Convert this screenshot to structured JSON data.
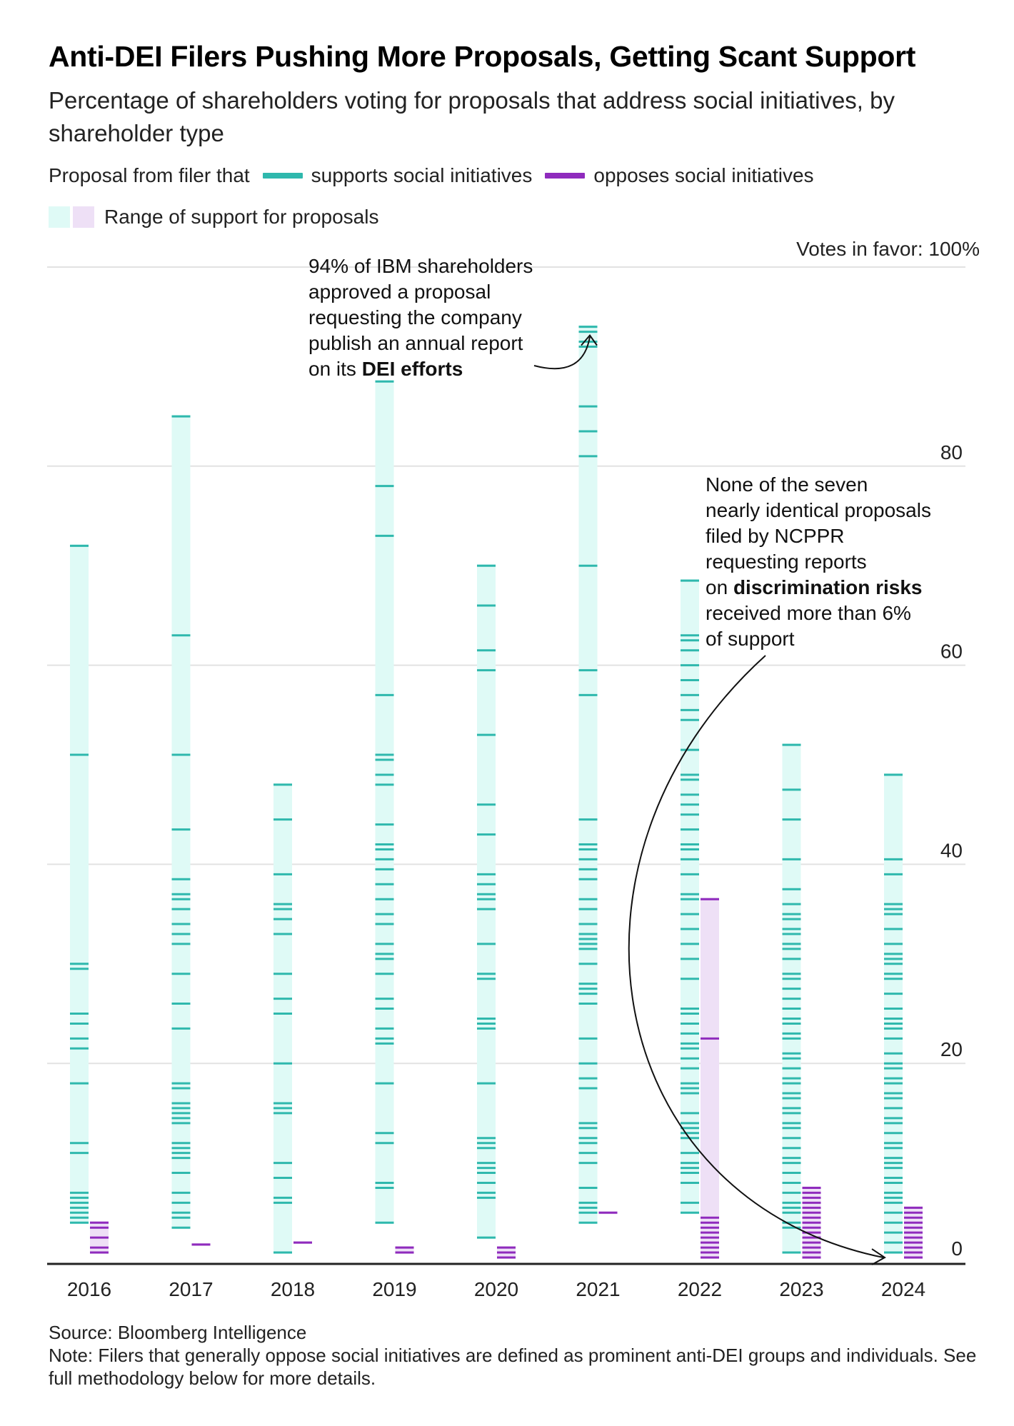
{
  "title": "Anti-DEI Filers Pushing More Proposals, Getting Scant Support",
  "subtitle": "Percentage of shareholders voting for proposals that address social initiatives, by shareholder type",
  "legend": {
    "prefix": "Proposal from filer that",
    "supports_label": "supports social initiatives",
    "opposes_label": "opposes social initiatives",
    "range_label": "Range of support for proposals"
  },
  "colors": {
    "supports": "#2fb8ad",
    "opposes": "#8f2bbd",
    "supports_range": "#dffaf6",
    "opposes_range": "#eee0f6",
    "grid": "#e2e2e2"
  },
  "annotations": {
    "ibm": [
      "94% of IBM shareholders",
      "approved a proposal",
      "requesting the company",
      "publish an annual report",
      "on its ",
      "DEI efforts"
    ],
    "ncppr": [
      "None of the seven",
      "nearly identical proposals",
      "filed by NCPPR",
      "requesting reports",
      "on ",
      "discrimination risks",
      "received more than 6%",
      "of support"
    ]
  },
  "chart_data": {
    "type": "scatter",
    "title": "Anti-DEI Filers Pushing More Proposals, Getting Scant Support",
    "ylabel": "Votes in favor: 100%",
    "ylim": [
      0,
      100
    ],
    "yticks": [
      0,
      20,
      40,
      60,
      80
    ],
    "ytick_labels": [
      "0",
      "20",
      "40",
      "60",
      "80"
    ],
    "top_tick_label": "Votes in favor: 100%",
    "categories": [
      "2016",
      "2017",
      "2018",
      "2019",
      "2020",
      "2021",
      "2022",
      "2023",
      "2024"
    ],
    "grid": true,
    "series": [
      {
        "name": "supports social initiatives",
        "values": [
          [
            72,
            51,
            30,
            29.5,
            25,
            24,
            22.5,
            21.5,
            18,
            12,
            11,
            7,
            6.5,
            6,
            5.5,
            5,
            4.5,
            4
          ],
          [
            85,
            63,
            51,
            43.5,
            38.5,
            37,
            36.5,
            35.5,
            34,
            33,
            32,
            29,
            26,
            23.5,
            18,
            17.5,
            16,
            15.5,
            15,
            14.5,
            14,
            12,
            11.5,
            11,
            10.5,
            9,
            7,
            6,
            5,
            4.5,
            3.5
          ],
          [
            48,
            44.5,
            39,
            36,
            35.5,
            34.5,
            33,
            29,
            26.5,
            25,
            20,
            16,
            15.5,
            15,
            10,
            8.5,
            6.5,
            6,
            1
          ],
          [
            88.5,
            78,
            73,
            57,
            51,
            50.5,
            49,
            48,
            44,
            42,
            41.5,
            40.5,
            39.5,
            38,
            36.5,
            35,
            34,
            32,
            31,
            30.5,
            29,
            26.5,
            25.5,
            23.5,
            22.5,
            22,
            18,
            13,
            12,
            8,
            7.5,
            4
          ],
          [
            70,
            66,
            61.5,
            59.5,
            53,
            46,
            43,
            39,
            38,
            37,
            36.5,
            35.5,
            32,
            29,
            28.5,
            24.5,
            24,
            23.5,
            18,
            12.5,
            12,
            11.5,
            10,
            9.5,
            9,
            8,
            7,
            6.5,
            2.5
          ],
          [
            94,
            93.5,
            92.5,
            92,
            86,
            83.5,
            81,
            70,
            59.5,
            57,
            44.5,
            42,
            41.5,
            40.5,
            39.5,
            38.5,
            36.5,
            35.5,
            34,
            33,
            32.5,
            32,
            31.5,
            30,
            28,
            27.5,
            27,
            26,
            22.5,
            20,
            18.5,
            17.5,
            14,
            13.5,
            12.5,
            12,
            11,
            10,
            7.5,
            6,
            5.5,
            5,
            4
          ],
          [
            68.5,
            63,
            62.5,
            61.5,
            60,
            58.5,
            57,
            55.5,
            54.5,
            51.5,
            49,
            48.5,
            47,
            46,
            45,
            43.5,
            42,
            41.5,
            40.5,
            39,
            37,
            36.5,
            35,
            33.5,
            32,
            30.5,
            28.5,
            25.5,
            25,
            24,
            23,
            22,
            21.5,
            20.5,
            19.5,
            18,
            17.5,
            17,
            15,
            14,
            13.5,
            13,
            12.5,
            11,
            10,
            9.5,
            9,
            8,
            6,
            5
          ],
          [
            52,
            47.5,
            44.5,
            40.5,
            37.5,
            36,
            35,
            34.5,
            33.5,
            33,
            32,
            31.5,
            30.5,
            29,
            28.5,
            27.5,
            26.5,
            25.5,
            24.5,
            24,
            23,
            22.5,
            21,
            20.5,
            19.5,
            18.5,
            18,
            17,
            16.5,
            15.5,
            15,
            14,
            13.5,
            12.5,
            11.5,
            10.5,
            10,
            9,
            8,
            7,
            6,
            5.5,
            5,
            4,
            3.5,
            1
          ],
          [
            49,
            40.5,
            39,
            36,
            35.5,
            35,
            33.5,
            32,
            31,
            30.5,
            30,
            29,
            28.5,
            27,
            25.5,
            24.5,
            24,
            23.5,
            22.5,
            21,
            20,
            19.5,
            18.5,
            18,
            17,
            16.5,
            15.5,
            14.5,
            14,
            13,
            12,
            11.5,
            10.5,
            10,
            9.5,
            8.5,
            8,
            7,
            6.5,
            6,
            5,
            4,
            3,
            2,
            1
          ]
        ]
      },
      {
        "name": "opposes social initiatives",
        "values": [
          [
            4,
            3.5,
            2.5,
            1.5,
            1
          ],
          [
            1.8
          ],
          [
            2
          ],
          [
            1.5,
            1
          ],
          [
            1.5,
            1,
            0.5
          ],
          [
            5
          ],
          [
            36.5,
            22.5,
            4.5,
            4,
            3.5,
            3,
            2.5,
            2,
            1.5,
            1,
            0.5
          ],
          [
            7.5,
            7,
            6.5,
            6,
            5.5,
            5,
            4.5,
            4,
            3.5,
            3,
            2.5,
            2,
            1.5,
            1,
            0.5
          ],
          [
            5.5,
            5,
            4.5,
            4,
            3.5,
            3,
            2.5,
            2,
            1.5,
            1,
            0.5
          ]
        ]
      }
    ],
    "annotations": [
      {
        "year": "2021",
        "value": 94,
        "text": "94% of IBM shareholders approved a proposal requesting the company publish an annual report on its DEI efforts"
      },
      {
        "year": "2024",
        "value": 0.5,
        "text": "None of the seven nearly identical proposals filed by NCPPR requesting reports on discrimination risks received more than 6% of support"
      }
    ]
  },
  "footer": {
    "source": "Source: Bloomberg Intelligence",
    "note": "Note: Filers that generally oppose social initiatives are defined as prominent anti-DEI groups and individuals. See full methodology below for more details."
  }
}
